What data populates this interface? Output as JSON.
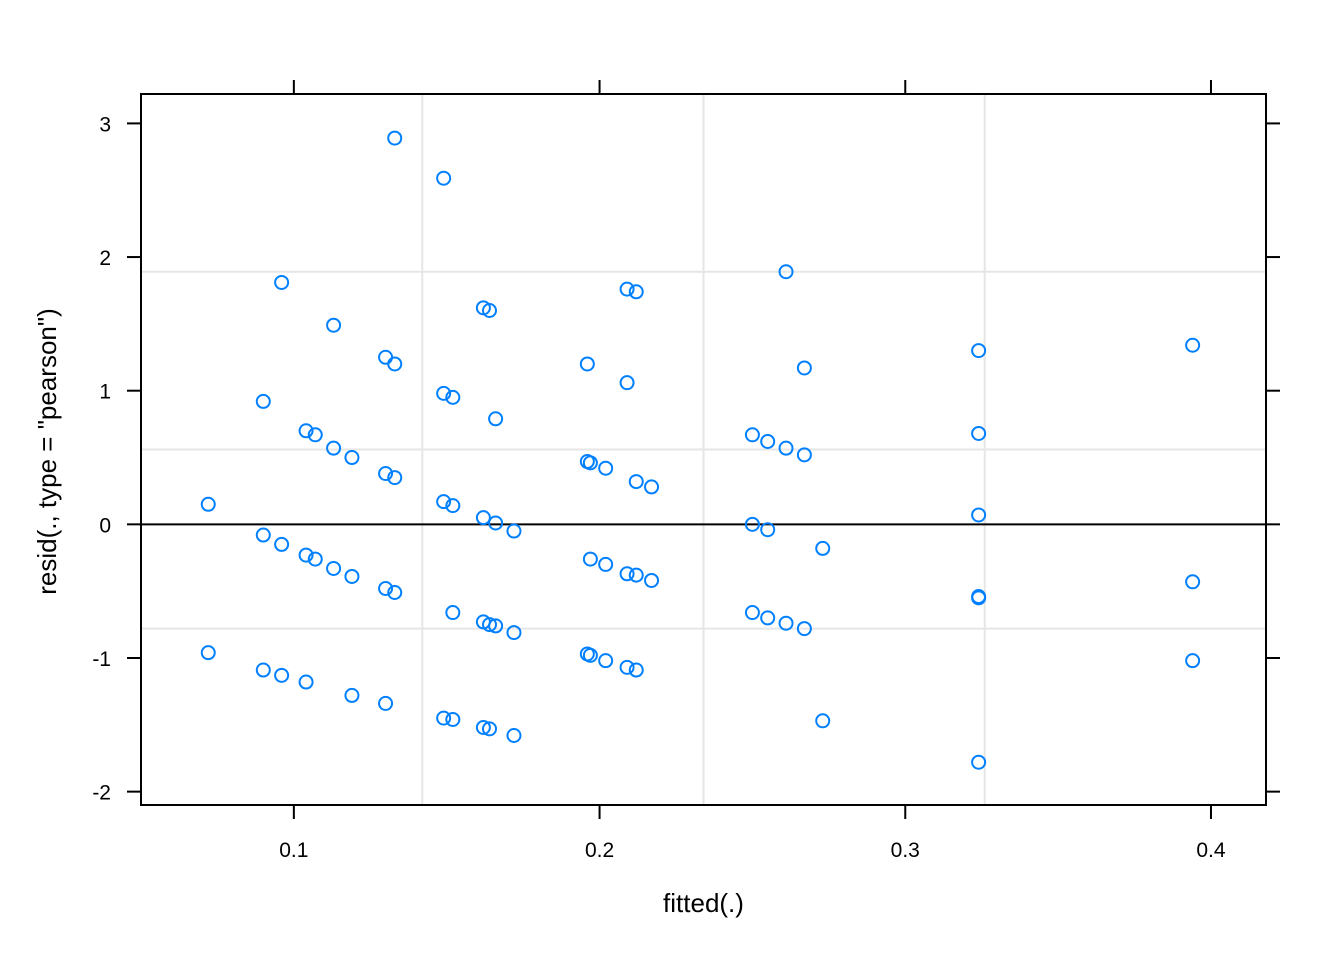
{
  "chart_data": {
    "type": "scatter",
    "title": "",
    "xlabel": "fitted(.)",
    "ylabel": "resid(., type = \"pearson\")",
    "xlim": [
      0.05,
      0.418
    ],
    "ylim": [
      -2.1,
      3.22
    ],
    "x_ticks": [
      0.1,
      0.2,
      0.3,
      0.4
    ],
    "x_tick_labels": [
      "0.1",
      "0.2",
      "0.3",
      "0.4"
    ],
    "y_ticks": [
      3,
      2,
      1,
      0,
      -1,
      -2
    ],
    "y_tick_labels": [
      "3",
      "2",
      "1",
      "0",
      "-1",
      "-2"
    ],
    "grid": true,
    "grid_x": [
      0.142,
      0.234,
      0.326
    ],
    "grid_y": [
      1.89,
      0.56,
      -0.78
    ],
    "reference_line_y": 0,
    "point_color": "#0080ff",
    "points": [
      {
        "x": 0.072,
        "y": 0.15
      },
      {
        "x": 0.072,
        "y": -0.96
      },
      {
        "x": 0.09,
        "y": 0.92
      },
      {
        "x": 0.09,
        "y": -0.08
      },
      {
        "x": 0.09,
        "y": -1.09
      },
      {
        "x": 0.096,
        "y": 1.81
      },
      {
        "x": 0.096,
        "y": -0.15
      },
      {
        "x": 0.096,
        "y": -1.13
      },
      {
        "x": 0.104,
        "y": 0.7
      },
      {
        "x": 0.104,
        "y": -0.23
      },
      {
        "x": 0.104,
        "y": -1.18
      },
      {
        "x": 0.107,
        "y": 0.67
      },
      {
        "x": 0.107,
        "y": -0.26
      },
      {
        "x": 0.113,
        "y": 1.49
      },
      {
        "x": 0.113,
        "y": 0.57
      },
      {
        "x": 0.113,
        "y": -0.33
      },
      {
        "x": 0.119,
        "y": 0.5
      },
      {
        "x": 0.119,
        "y": -0.39
      },
      {
        "x": 0.119,
        "y": -1.28
      },
      {
        "x": 0.13,
        "y": 1.25
      },
      {
        "x": 0.13,
        "y": 0.38
      },
      {
        "x": 0.13,
        "y": -0.48
      },
      {
        "x": 0.13,
        "y": -1.34
      },
      {
        "x": 0.133,
        "y": 2.89
      },
      {
        "x": 0.133,
        "y": 1.2
      },
      {
        "x": 0.133,
        "y": 0.35
      },
      {
        "x": 0.133,
        "y": -0.51
      },
      {
        "x": 0.149,
        "y": 2.59
      },
      {
        "x": 0.149,
        "y": 0.98
      },
      {
        "x": 0.149,
        "y": 0.17
      },
      {
        "x": 0.149,
        "y": -1.45
      },
      {
        "x": 0.152,
        "y": 0.95
      },
      {
        "x": 0.152,
        "y": 0.14
      },
      {
        "x": 0.152,
        "y": -0.66
      },
      {
        "x": 0.152,
        "y": -1.46
      },
      {
        "x": 0.162,
        "y": 1.62
      },
      {
        "x": 0.162,
        "y": 0.05
      },
      {
        "x": 0.162,
        "y": -0.73
      },
      {
        "x": 0.162,
        "y": -1.52
      },
      {
        "x": 0.164,
        "y": 1.6
      },
      {
        "x": 0.164,
        "y": -0.75
      },
      {
        "x": 0.164,
        "y": -1.53
      },
      {
        "x": 0.166,
        "y": 0.79
      },
      {
        "x": 0.166,
        "y": 0.01
      },
      {
        "x": 0.166,
        "y": -0.76
      },
      {
        "x": 0.172,
        "y": -0.05
      },
      {
        "x": 0.172,
        "y": -0.81
      },
      {
        "x": 0.172,
        "y": -1.58
      },
      {
        "x": 0.196,
        "y": 1.2
      },
      {
        "x": 0.196,
        "y": 0.47
      },
      {
        "x": 0.196,
        "y": -0.97
      },
      {
        "x": 0.197,
        "y": 0.46
      },
      {
        "x": 0.197,
        "y": -0.26
      },
      {
        "x": 0.197,
        "y": -0.98
      },
      {
        "x": 0.202,
        "y": 0.42
      },
      {
        "x": 0.202,
        "y": -0.3
      },
      {
        "x": 0.202,
        "y": -1.02
      },
      {
        "x": 0.209,
        "y": 1.76
      },
      {
        "x": 0.209,
        "y": 1.06
      },
      {
        "x": 0.209,
        "y": -0.37
      },
      {
        "x": 0.209,
        "y": -1.07
      },
      {
        "x": 0.212,
        "y": 1.74
      },
      {
        "x": 0.212,
        "y": 0.32
      },
      {
        "x": 0.212,
        "y": -0.38
      },
      {
        "x": 0.212,
        "y": -1.09
      },
      {
        "x": 0.217,
        "y": 0.28
      },
      {
        "x": 0.217,
        "y": -0.42
      },
      {
        "x": 0.25,
        "y": 0.67
      },
      {
        "x": 0.25,
        "y": 0.0
      },
      {
        "x": 0.25,
        "y": -0.66
      },
      {
        "x": 0.255,
        "y": 0.62
      },
      {
        "x": 0.255,
        "y": -0.04
      },
      {
        "x": 0.255,
        "y": -0.7
      },
      {
        "x": 0.261,
        "y": 1.89
      },
      {
        "x": 0.261,
        "y": 0.57
      },
      {
        "x": 0.261,
        "y": -0.74
      },
      {
        "x": 0.267,
        "y": 1.17
      },
      {
        "x": 0.267,
        "y": 0.52
      },
      {
        "x": 0.267,
        "y": -0.78
      },
      {
        "x": 0.273,
        "y": -0.18
      },
      {
        "x": 0.273,
        "y": -1.47
      },
      {
        "x": 0.324,
        "y": 1.3
      },
      {
        "x": 0.324,
        "y": 0.68
      },
      {
        "x": 0.324,
        "y": 0.07
      },
      {
        "x": 0.324,
        "y": -0.54
      },
      {
        "x": 0.324,
        "y": -0.55
      },
      {
        "x": 0.324,
        "y": -1.78
      },
      {
        "x": 0.394,
        "y": 1.34
      },
      {
        "x": 0.394,
        "y": -0.43
      },
      {
        "x": 0.394,
        "y": -1.02
      }
    ]
  }
}
